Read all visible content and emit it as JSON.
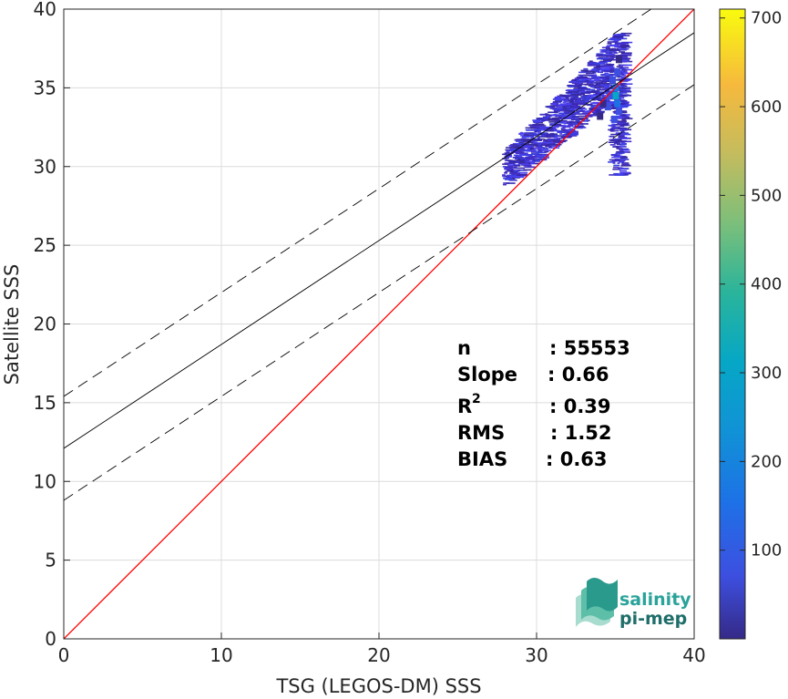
{
  "chart_data": {
    "type": "heatmap",
    "xlabel": "TSG (LEGOS-DM) SSS",
    "ylabel": "Satellite SSS",
    "xlim": [
      0,
      40
    ],
    "ylim": [
      0,
      40
    ],
    "xticks": [
      "0",
      "10",
      "20",
      "30",
      "40"
    ],
    "yticks": [
      "0",
      "5",
      "10",
      "15",
      "20",
      "25",
      "30",
      "35",
      "40"
    ],
    "grid": true,
    "colorbar": {
      "range": [
        0,
        710
      ],
      "ticks": [
        "100",
        "200",
        "300",
        "400",
        "500",
        "600",
        "700"
      ],
      "colormap": "parula"
    },
    "lines": [
      {
        "role": "identity",
        "slope": 1.0,
        "intercept": 0.0,
        "color": "#ff0000",
        "style": "solid"
      },
      {
        "role": "fit",
        "slope": 0.66,
        "intercept": 12.1,
        "color": "#000000",
        "style": "solid"
      },
      {
        "role": "fit-upper",
        "slope": 0.66,
        "intercept": 15.4,
        "color": "#000000",
        "style": "dashed"
      },
      {
        "role": "fit-lower",
        "slope": 0.66,
        "intercept": 8.8,
        "color": "#000000",
        "style": "dashed"
      }
    ],
    "density_cells": [
      {
        "x": 35.0,
        "y": 34.5,
        "v": 320
      },
      {
        "x": 35.1,
        "y": 34.0,
        "v": 260
      },
      {
        "x": 35.0,
        "y": 35.0,
        "v": 240
      },
      {
        "x": 35.2,
        "y": 33.5,
        "v": 180
      },
      {
        "x": 34.8,
        "y": 35.5,
        "v": 160
      },
      {
        "x": 35.1,
        "y": 36.0,
        "v": 120
      },
      {
        "x": 34.9,
        "y": 33.0,
        "v": 130
      },
      {
        "x": 34.6,
        "y": 34.5,
        "v": 140
      },
      {
        "x": 34.5,
        "y": 33.8,
        "v": 110
      },
      {
        "x": 35.2,
        "y": 36.8,
        "v": 80
      },
      {
        "x": 34.2,
        "y": 34.0,
        "v": 90
      },
      {
        "x": 34.0,
        "y": 33.2,
        "v": 70
      }
    ],
    "stats": [
      {
        "label": "n",
        "value": ": 55553"
      },
      {
        "label": "Slope",
        "value": ": 0.66"
      },
      {
        "label": "R",
        "sup": "2",
        "value": ": 0.39"
      },
      {
        "label": "RMS",
        "value": ": 1.52"
      },
      {
        "label": "BIAS",
        "value": ": 0.63"
      }
    ]
  },
  "logo": {
    "line1": "salinity",
    "line2": "pi-mep",
    "color1": "#2aa39a",
    "color2": "#1e6e6a"
  }
}
